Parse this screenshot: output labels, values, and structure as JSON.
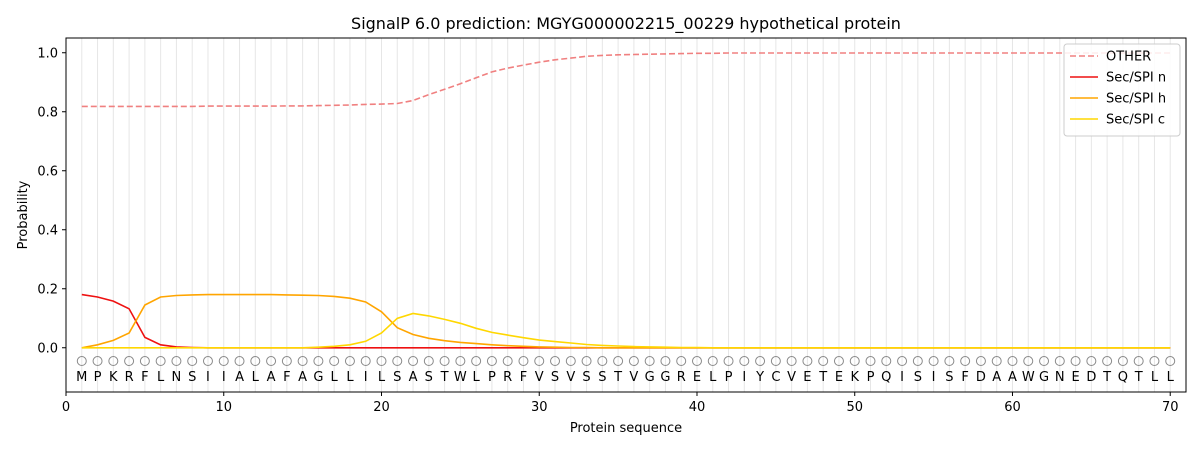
{
  "chart_data": {
    "type": "line",
    "title": "SignalP 6.0 prediction: MGYG000002215_00229 hypothetical protein",
    "xlabel": "Protein sequence",
    "ylabel": "Probability",
    "xlim": [
      0,
      71
    ],
    "ylim": [
      -0.15,
      1.05
    ],
    "xticks": [
      0,
      10,
      20,
      30,
      40,
      50,
      60,
      70
    ],
    "yticks": [
      0.0,
      0.2,
      0.4,
      0.6,
      0.8,
      1.0
    ],
    "ytick_labels": [
      "0.0",
      "0.2",
      "0.4",
      "0.6",
      "0.8",
      "1.0"
    ],
    "grid": "vertical lines at each residue",
    "legend_position": "top-right",
    "sequence": [
      "M",
      "P",
      "K",
      "R",
      "F",
      "L",
      "N",
      "S",
      "I",
      "I",
      "A",
      "L",
      "A",
      "F",
      "A",
      "G",
      "L",
      "L",
      "I",
      "L",
      "S",
      "A",
      "S",
      "T",
      "W",
      "L",
      "P",
      "R",
      "F",
      "V",
      "S",
      "V",
      "S",
      "S",
      "T",
      "V",
      "G",
      "G",
      "R",
      "E",
      "L",
      "P",
      "I",
      "Y",
      "C",
      "V",
      "E",
      "T",
      "E",
      "K",
      "P",
      "Q",
      "I",
      "S",
      "I",
      "S",
      "F",
      "D",
      "A",
      "A",
      "W",
      "G",
      "N",
      "E",
      "D",
      "T",
      "Q",
      "T",
      "L",
      "L"
    ],
    "annotation_marker": "O",
    "annotation_y": -0.045,
    "series": [
      {
        "name": "OTHER",
        "color": "#f08080",
        "style": "dashed",
        "values": [
          0.818,
          0.818,
          0.818,
          0.818,
          0.818,
          0.818,
          0.818,
          0.818,
          0.819,
          0.819,
          0.819,
          0.819,
          0.819,
          0.82,
          0.82,
          0.821,
          0.822,
          0.823,
          0.825,
          0.826,
          0.828,
          0.838,
          0.858,
          0.876,
          0.895,
          0.915,
          0.935,
          0.948,
          0.958,
          0.968,
          0.976,
          0.982,
          0.988,
          0.991,
          0.993,
          0.994,
          0.995,
          0.996,
          0.997,
          0.998,
          0.998,
          0.999,
          0.999,
          0.999,
          0.999,
          0.999,
          0.999,
          0.999,
          0.999,
          0.999,
          0.999,
          0.999,
          0.999,
          0.999,
          0.999,
          0.999,
          0.999,
          0.999,
          0.999,
          0.999,
          0.999,
          0.999,
          0.999,
          0.999,
          0.999,
          0.999,
          0.999,
          0.999,
          0.999,
          0.999
        ]
      },
      {
        "name": "Sec/SPI n",
        "color": "#ee1111",
        "style": "solid",
        "values": [
          0.18,
          0.172,
          0.158,
          0.132,
          0.035,
          0.01,
          0.003,
          0.001,
          0.0,
          0.0,
          0.0,
          0.0,
          0.0,
          0.0,
          0.0,
          0.0,
          0.0,
          0.0,
          0.0,
          0.0,
          0.0,
          0.0,
          0.0,
          0.0,
          0.0,
          0.0,
          0.0,
          0.0,
          0.0,
          0.0,
          0.0,
          0.0,
          0.0,
          0.0,
          0.0,
          0.0,
          0.0,
          0.0,
          0.0,
          0.0,
          0.0,
          0.0,
          0.0,
          0.0,
          0.0,
          0.0,
          0.0,
          0.0,
          0.0,
          0.0,
          0.0,
          0.0,
          0.0,
          0.0,
          0.0,
          0.0,
          0.0,
          0.0,
          0.0,
          0.0,
          0.0,
          0.0,
          0.0,
          0.0,
          0.0,
          0.0,
          0.0,
          0.0,
          0.0,
          0.0
        ]
      },
      {
        "name": "Sec/SPI h",
        "color": "#ffa500",
        "style": "solid",
        "values": [
          0.0,
          0.01,
          0.025,
          0.05,
          0.145,
          0.172,
          0.177,
          0.179,
          0.18,
          0.18,
          0.18,
          0.18,
          0.18,
          0.179,
          0.178,
          0.177,
          0.174,
          0.168,
          0.155,
          0.122,
          0.068,
          0.045,
          0.032,
          0.024,
          0.018,
          0.014,
          0.01,
          0.007,
          0.005,
          0.003,
          0.002,
          0.001,
          0.001,
          0.0,
          0.0,
          0.0,
          0.0,
          0.0,
          0.0,
          0.0,
          0.0,
          0.0,
          0.0,
          0.0,
          0.0,
          0.0,
          0.0,
          0.0,
          0.0,
          0.0,
          0.0,
          0.0,
          0.0,
          0.0,
          0.0,
          0.0,
          0.0,
          0.0,
          0.0,
          0.0,
          0.0,
          0.0,
          0.0,
          0.0,
          0.0,
          0.0,
          0.0,
          0.0,
          0.0,
          0.0
        ]
      },
      {
        "name": "Sec/SPI c",
        "color": "#ffd700",
        "style": "solid",
        "values": [
          0.0,
          0.0,
          0.0,
          0.0,
          0.0,
          0.0,
          0.0,
          0.0,
          0.0,
          0.0,
          0.0,
          0.0,
          0.0,
          0.0,
          0.0,
          0.002,
          0.005,
          0.01,
          0.022,
          0.05,
          0.1,
          0.116,
          0.108,
          0.096,
          0.083,
          0.066,
          0.052,
          0.043,
          0.034,
          0.026,
          0.021,
          0.016,
          0.011,
          0.008,
          0.006,
          0.004,
          0.003,
          0.002,
          0.001,
          0.001,
          0.0,
          0.0,
          0.0,
          0.0,
          0.0,
          0.0,
          0.0,
          0.0,
          0.0,
          0.0,
          0.0,
          0.0,
          0.0,
          0.0,
          0.0,
          0.0,
          0.0,
          0.0,
          0.0,
          0.0,
          0.0,
          0.0,
          0.0,
          0.0,
          0.0,
          0.0,
          0.0,
          0.0,
          0.0,
          0.0
        ]
      }
    ]
  }
}
